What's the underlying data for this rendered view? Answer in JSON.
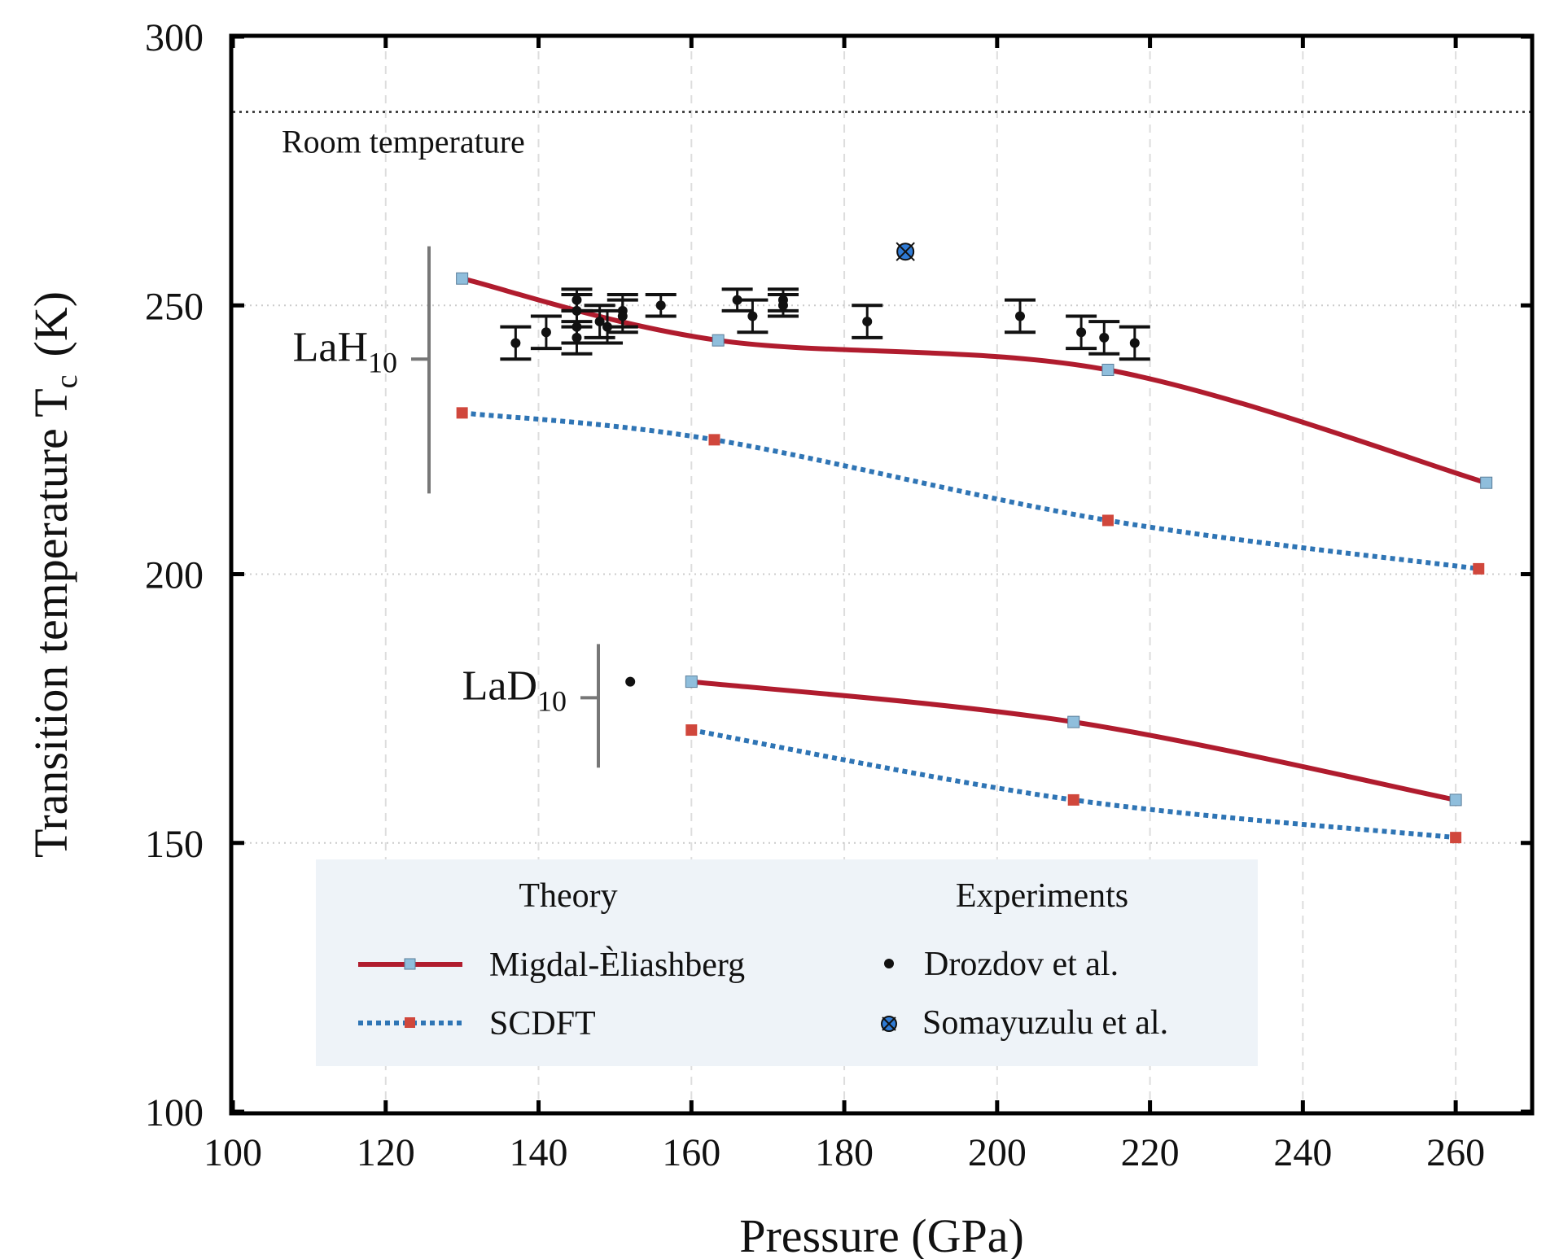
{
  "chart_data": {
    "type": "line",
    "title": "",
    "xlabel": "Pressure (GPa)",
    "ylabel": "Transition temperature T",
    "ylabel_sub": "c",
    "ylabel_unit": "(K)",
    "xlim": [
      100,
      270
    ],
    "ylim": [
      100,
      300
    ],
    "xticks": [
      100,
      120,
      140,
      160,
      180,
      200,
      220,
      240,
      260
    ],
    "yticks": [
      100,
      150,
      200,
      250,
      300
    ],
    "grid": true,
    "colors": {
      "me_line": "#b01c2e",
      "me_marker": "#8fbedc",
      "scdft_line": "#2f75b5",
      "scdft_marker": "#d0473c",
      "experiment": "#111111",
      "somayuzulu": "#2f7bd6",
      "legend_bg": "#eef3f8",
      "compound_bar": "#777777"
    },
    "room_temperature": {
      "value": 286,
      "label": "Room temperature"
    },
    "groups": [
      {
        "name": "LaH",
        "sub": "10",
        "y_range": [
          215,
          261
        ],
        "y_label": 240
      },
      {
        "name": "LaD",
        "sub": "10",
        "y_range": [
          164,
          187
        ],
        "y_label": 177
      }
    ],
    "series": [
      {
        "name": "Migdal-Èliashberg LaH10",
        "method": "Migdal-Èliashberg",
        "compound": "LaH10",
        "x": [
          130,
          163.5,
          214.5,
          264
        ],
        "y": [
          255,
          243.5,
          238,
          217
        ]
      },
      {
        "name": "SCDFT LaH10",
        "method": "SCDFT",
        "compound": "LaH10",
        "x": [
          130,
          163,
          214.5,
          263
        ],
        "y": [
          230,
          225,
          210,
          201
        ]
      },
      {
        "name": "Migdal-Èliashberg LaD10",
        "method": "Migdal-Èliashberg",
        "compound": "LaD10",
        "x": [
          160,
          210,
          260
        ],
        "y": [
          180,
          172.5,
          158
        ]
      },
      {
        "name": "SCDFT LaD10",
        "method": "SCDFT",
        "compound": "LaD10",
        "x": [
          160,
          210,
          260
        ],
        "y": [
          171,
          158,
          151
        ]
      }
    ],
    "experiments": {
      "drozdov": {
        "name": "Drozdov et al.",
        "points": [
          {
            "x": 137,
            "y": 243,
            "err": 3
          },
          {
            "x": 141,
            "y": 245,
            "err": 3
          },
          {
            "x": 145,
            "y": 251,
            "err": 2
          },
          {
            "x": 145,
            "y": 249,
            "err": 3
          },
          {
            "x": 145,
            "y": 246,
            "err": 3
          },
          {
            "x": 145,
            "y": 244,
            "err": 3
          },
          {
            "x": 148,
            "y": 247,
            "err": 3
          },
          {
            "x": 149,
            "y": 246,
            "err": 3
          },
          {
            "x": 151,
            "y": 249,
            "err": 3
          },
          {
            "x": 151,
            "y": 248,
            "err": 3
          },
          {
            "x": 156,
            "y": 250,
            "err": 2
          },
          {
            "x": 166,
            "y": 251,
            "err": 2
          },
          {
            "x": 168,
            "y": 248,
            "err": 3
          },
          {
            "x": 172,
            "y": 251,
            "err": 2
          },
          {
            "x": 172,
            "y": 250,
            "err": 2
          },
          {
            "x": 183,
            "y": 247,
            "err": 3
          },
          {
            "x": 203,
            "y": 248,
            "err": 3
          },
          {
            "x": 211,
            "y": 245,
            "err": 3
          },
          {
            "x": 214,
            "y": 244,
            "err": 3
          },
          {
            "x": 218,
            "y": 243,
            "err": 3
          },
          {
            "x": 152,
            "y": 180,
            "err": 0
          }
        ]
      },
      "somayuzulu": {
        "name": "Somayuzulu et al.",
        "points": [
          {
            "x": 188,
            "y": 260
          }
        ]
      }
    },
    "legend": {
      "position": "lower-left",
      "theory_title": "Theory",
      "experiments_title": "Experiments",
      "theory_items": [
        "Migdal-Èliashberg",
        "SCDFT"
      ],
      "experiment_items": [
        "Drozdov et al.",
        "Somayuzulu et al."
      ]
    }
  }
}
